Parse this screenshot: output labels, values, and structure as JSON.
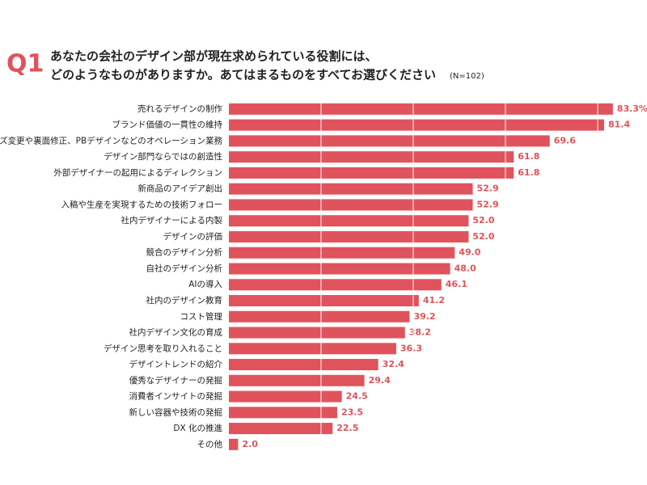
{
  "chart_data": {
    "type": "bar",
    "orientation": "horizontal",
    "question_number": "Q1",
    "title_lines": [
      "あなたの会社のデザイン部が現在求められている役割には、",
      "どのようなものがありますか。あてはまるものをすべてお選びください"
    ],
    "sample_size": "(N=102)",
    "categories": [
      "売れるデザインの制作",
      "ブランド価値の一貫性の維持",
      "サイズ変更や裏面修正、PBデザインなどのオペレーション業務",
      "デザイン部門ならではの創造性",
      "外部デザイナーの起用によるディレクション",
      "新商品のアイデア創出",
      "入稿や生産を実現するための技術フォロー",
      "社内デザイナーによる内製",
      "デザインの評価",
      "競合のデザイン分析",
      "自社のデザイン分析",
      "AIの導入",
      "社内のデザイン教育",
      "コスト管理",
      "社内デザイン文化の育成",
      "デザイン思考を取り入れること",
      "デザイントレンドの紹介",
      "優秀なデザイナーの発掘",
      "消費者インサイトの発掘",
      "新しい容器や技術の発掘",
      "DX 化の推進",
      "その他"
    ],
    "values": [
      83.3,
      81.4,
      69.6,
      61.8,
      61.8,
      52.9,
      52.9,
      52.0,
      52.0,
      49.0,
      48.0,
      46.1,
      41.2,
      39.2,
      38.2,
      36.3,
      32.4,
      29.4,
      24.5,
      23.5,
      22.5,
      2.0
    ],
    "value_labels": [
      "83.3%",
      "81.4",
      "69.6",
      "61.8",
      "61.8",
      "52.9",
      "52.9",
      "52.0",
      "52.0",
      "49.0",
      "48.0",
      "46.1",
      "41.2",
      "39.2",
      "38.2",
      "36.3",
      "32.4",
      "29.4",
      "24.5",
      "23.5",
      "22.5",
      "2.0"
    ],
    "color": "#e0535c",
    "xlim": [
      0,
      100
    ],
    "xticks": [
      20,
      40,
      60,
      80
    ],
    "grid": true
  }
}
